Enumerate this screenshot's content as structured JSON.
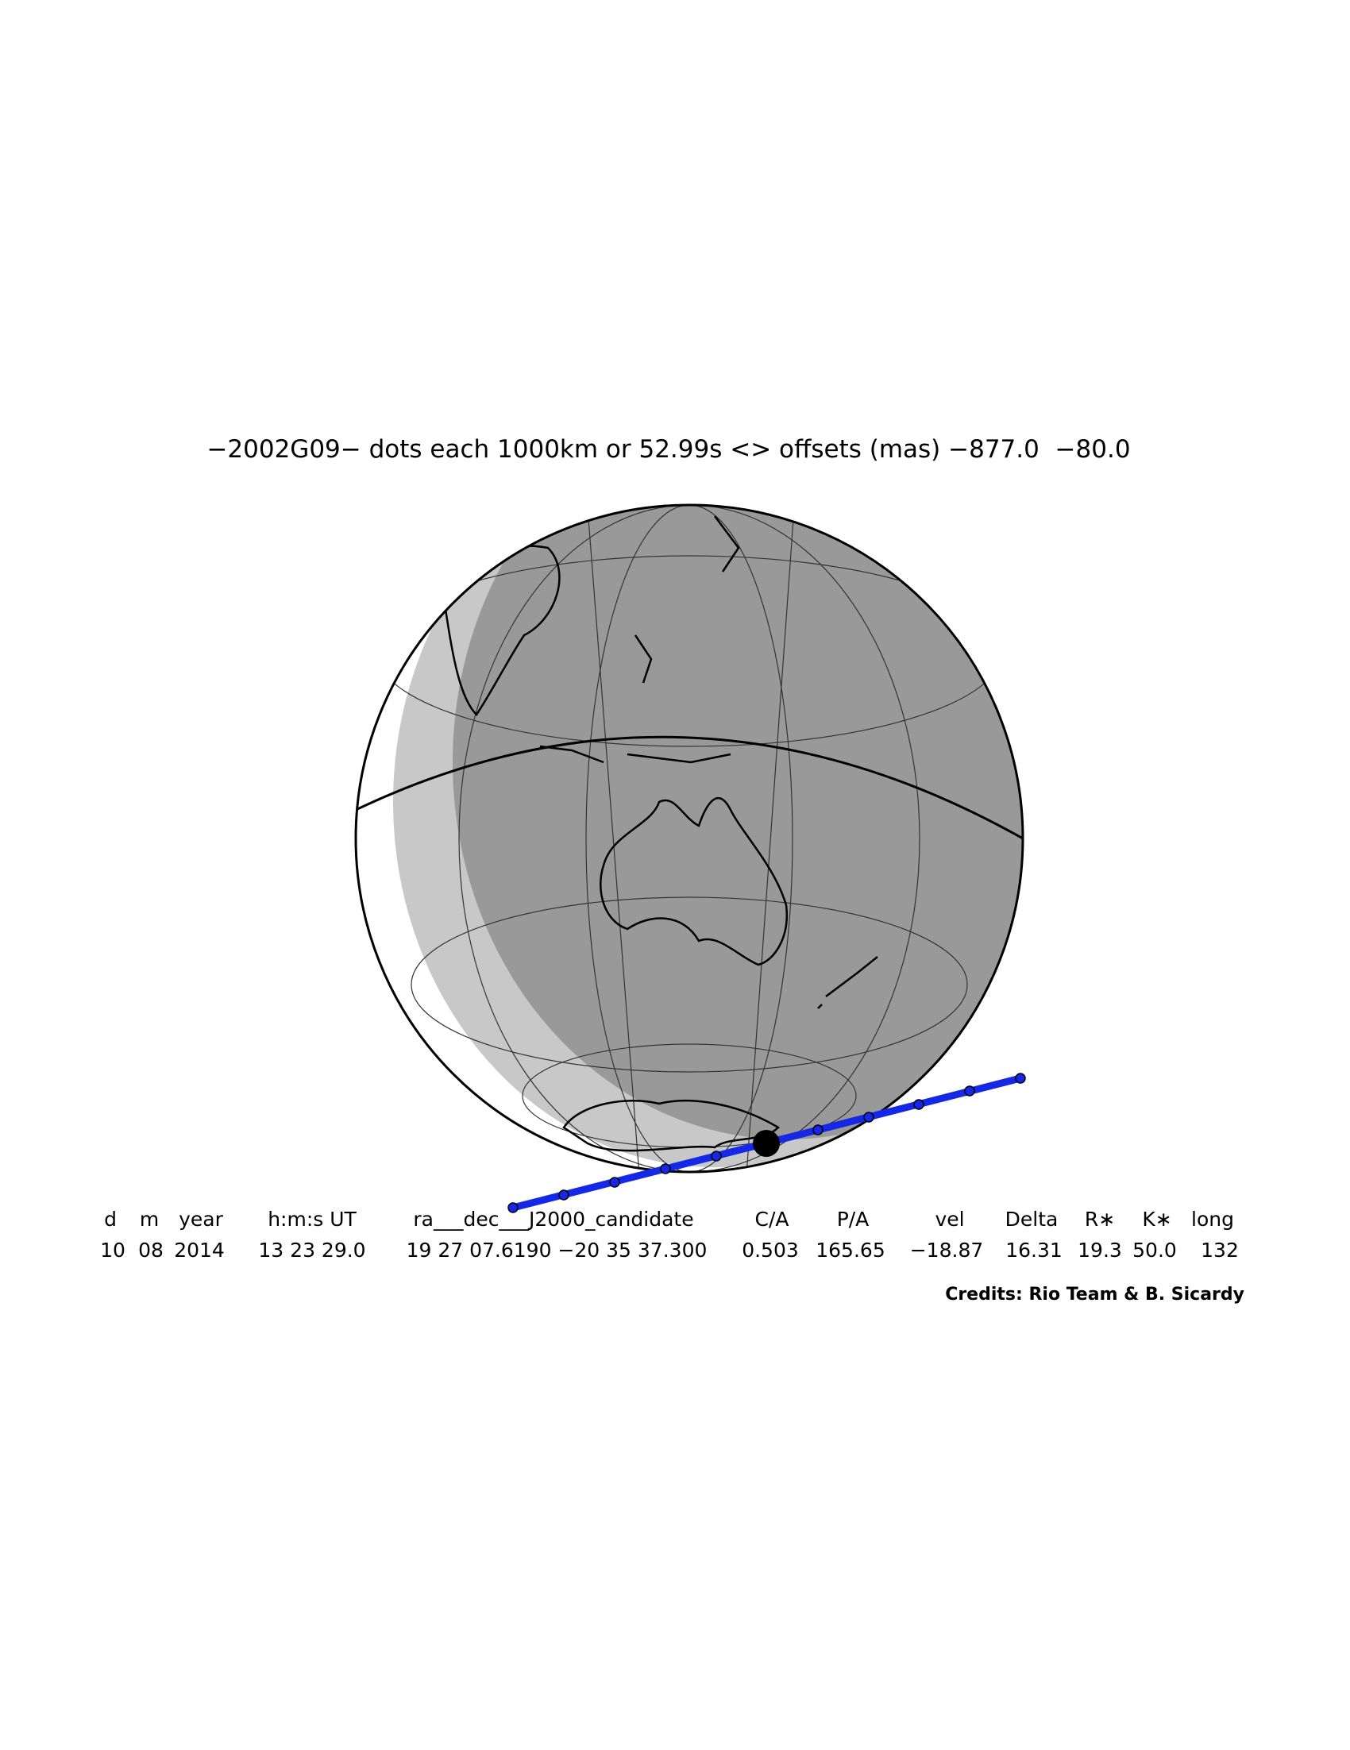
{
  "title": "−2002G09− dots each 1000km or 52.99s <> offsets (mas) −877.0  −80.0",
  "table": {
    "header": [
      "d",
      "m",
      "year",
      "h:m:s UT",
      "ra___dec___J2000_candidate",
      "C/A",
      "P/A",
      "vel",
      "Delta",
      "R∗",
      "K∗",
      "long"
    ],
    "row": [
      "10",
      "08",
      "2014",
      "13 23 29.0",
      "19 27 07.6190 −20 35 37.300",
      "0.503",
      "165.65",
      "−18.87",
      "16.31",
      "19.3",
      "50.0",
      "132"
    ]
  },
  "credits": "Credits: Rio Team & B. Sicardy"
}
